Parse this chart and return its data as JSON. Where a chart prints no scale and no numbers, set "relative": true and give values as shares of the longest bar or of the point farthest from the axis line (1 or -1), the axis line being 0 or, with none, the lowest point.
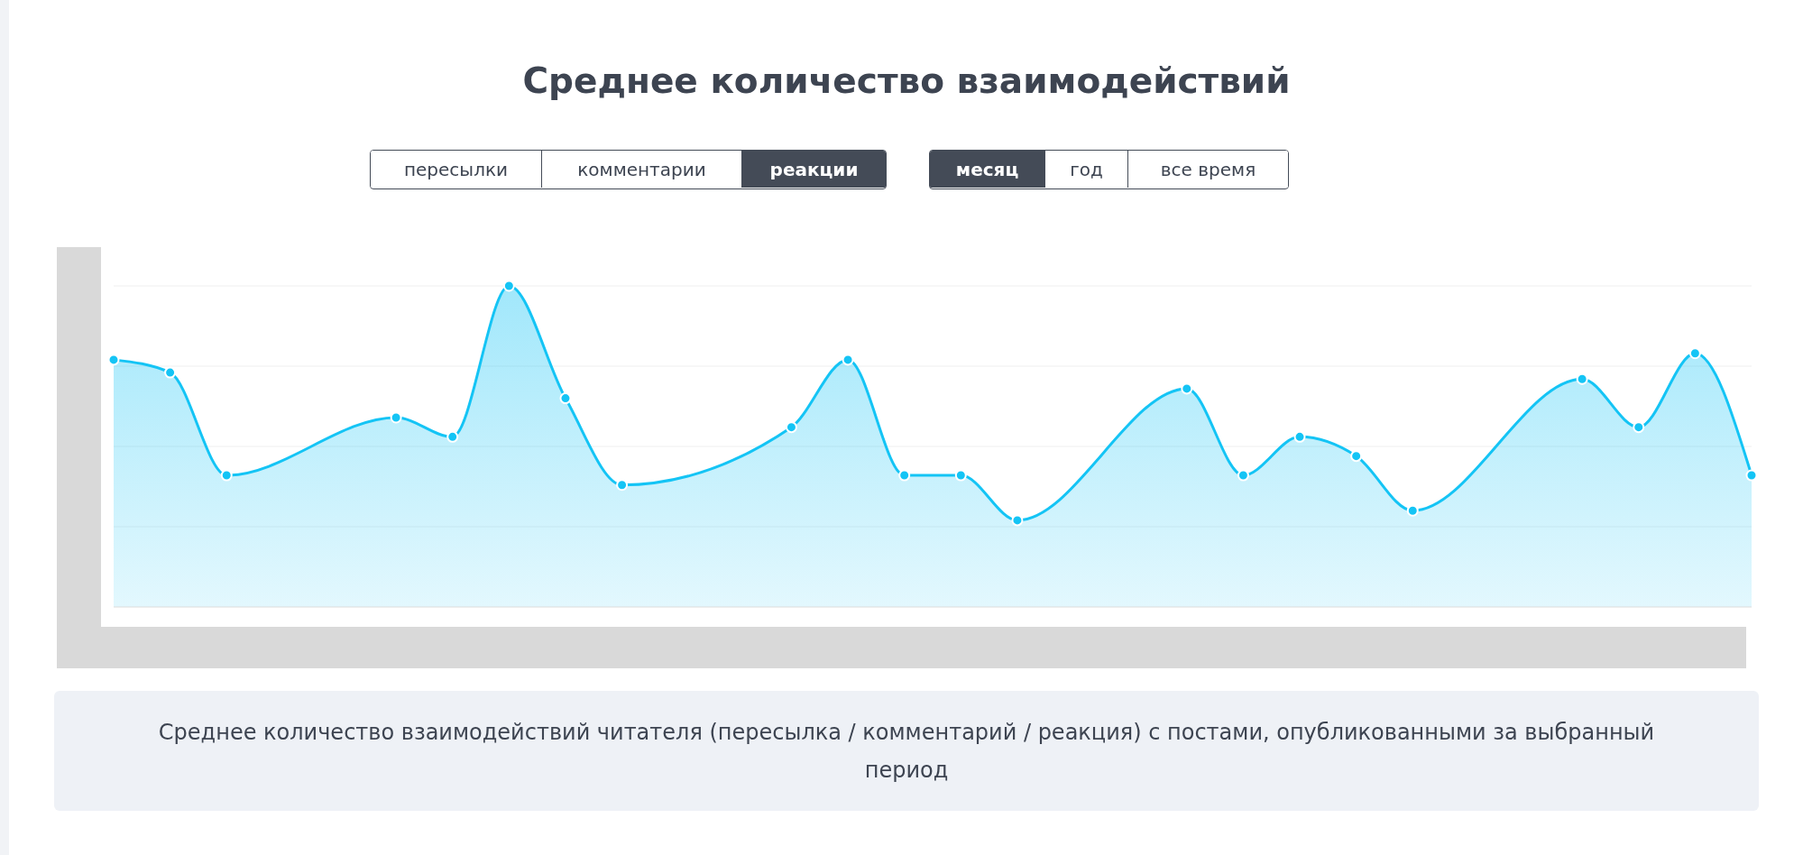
{
  "chart_data": {
    "type": "area",
    "title": "Среднее количество взаимодействий",
    "categories": [
      null,
      null,
      null,
      null,
      null,
      null,
      null,
      null,
      null,
      null,
      null,
      null,
      null,
      null,
      null,
      null,
      null,
      null,
      null,
      null,
      null,
      null,
      null,
      null,
      null,
      null,
      null,
      null,
      null,
      null
    ],
    "values": [
      0.77,
      0.73,
      0.41,
      null,
      null,
      0.59,
      0.53,
      1,
      0.65,
      0.38,
      null,
      null,
      0.56,
      0.77,
      0.41,
      0.41,
      0.27,
      null,
      null,
      0.68,
      0.41,
      0.53,
      0.47,
      0.3,
      null,
      null,
      0.71,
      0.56,
      0.79,
      0.41
    ],
    "color": "#14c4f5",
    "relative": true,
    "grid": "y",
    "marker": "circle",
    "line_style": "solid",
    "tick_labels": false,
    "annotations": [
      "пересылки",
      "комментарии",
      "реакции",
      "месяц",
      "год",
      "все время",
      "Среднее количество взаимодействий читателя (пересылка / комментарий / реакция) с постами, опубликованными за выбранный период"
    ]
  }
}
